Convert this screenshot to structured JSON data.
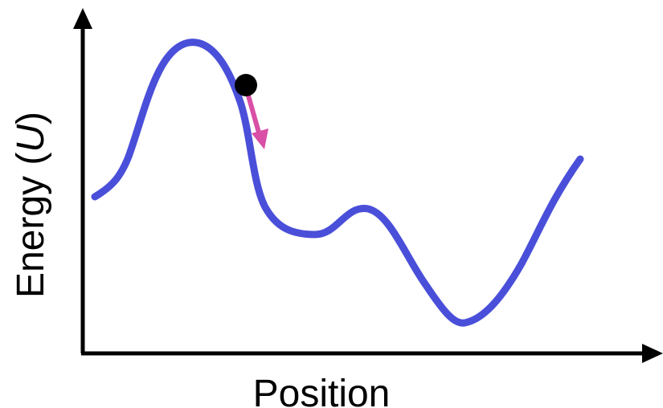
{
  "diagram": {
    "xlabel": "Position",
    "ylabel": {
      "prefix": "Energy (",
      "variable": "U",
      "suffix": ")"
    }
  },
  "colors": {
    "curve": "#4a4fd9",
    "arrow": "#d94fa6",
    "ball": "#000000",
    "axes": "#000000"
  }
}
